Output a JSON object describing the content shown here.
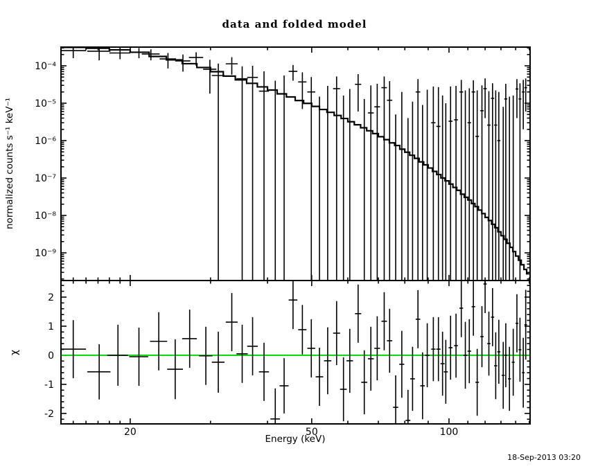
{
  "title": "data and folded model",
  "footer": {
    "timestamp": "18-Sep-2013 03:20"
  },
  "colors": {
    "frame": "#000000",
    "data": "#000000",
    "model": "#000000",
    "zero_line": "#00d400",
    "background": "#ffffff"
  },
  "chart_data": [
    {
      "panel": "spectrum",
      "type": "line",
      "title": "data and folded model",
      "ylabel": "normalized counts s⁻¹ keV⁻¹",
      "xscale": "log",
      "yscale": "log",
      "xlim": [
        14.1,
        150.6
      ],
      "ylim": [
        1.82e-10,
        0.000316
      ],
      "x_ticks_major": [
        20,
        50,
        100
      ],
      "x_tick_labels": [
        "20",
        "50",
        "100"
      ],
      "x_ticks_minor": [
        15,
        16,
        17,
        18,
        19,
        30,
        40,
        60,
        70,
        80,
        90,
        110,
        120,
        130,
        140,
        150
      ],
      "y_ticks_major": [
        0.0001,
        1e-05,
        1e-06,
        1e-07,
        1e-08,
        1e-09
      ],
      "y_tick_labels": [
        "10⁻⁴",
        "10⁻⁵",
        "10⁻⁶",
        "10⁻⁷",
        "10⁻⁸",
        "10⁻⁹"
      ],
      "legend": null,
      "grid": false,
      "bin_half_width_kev": 1,
      "model_steps": [
        [
          15,
          0.00031
        ],
        [
          17,
          0.000295
        ],
        [
          19,
          0.000267
        ],
        [
          21,
          0.00023
        ],
        [
          23,
          0.000178
        ],
        [
          25,
          0.000144
        ],
        [
          27,
          0.000114
        ],
        [
          29,
          9e-05
        ],
        [
          31,
          6.95e-05
        ],
        [
          33,
          5.3e-05
        ],
        [
          35,
          4.2e-05
        ],
        [
          37,
          3.4e-05
        ],
        [
          39,
          2.73e-05
        ],
        [
          41,
          2.25e-05
        ],
        [
          43,
          1.78e-05
        ],
        [
          45,
          1.47e-05
        ],
        [
          47,
          1.18e-05
        ],
        [
          49,
          9.9e-06
        ],
        [
          51,
          8.2e-06
        ],
        [
          53,
          6.8e-06
        ],
        [
          55,
          5.7e-06
        ],
        [
          57,
          4.7e-06
        ],
        [
          59,
          3.9e-06
        ],
        [
          61,
          3.2e-06
        ],
        [
          63,
          2.65e-06
        ],
        [
          65,
          2.2e-06
        ],
        [
          67,
          1.83e-06
        ],
        [
          69,
          1.54e-06
        ],
        [
          71,
          1.27e-06
        ],
        [
          73,
          1.06e-06
        ],
        [
          75,
          8.7e-07
        ],
        [
          77,
          7.4e-07
        ],
        [
          79,
          5.9e-07
        ],
        [
          81,
          4.9e-07
        ],
        [
          83,
          4.05e-07
        ],
        [
          85,
          3.35e-07
        ],
        [
          87,
          2.7e-07
        ],
        [
          89,
          2.25e-07
        ],
        [
          91,
          1.85e-07
        ],
        [
          93,
          1.5e-07
        ],
        [
          95,
          1.24e-07
        ],
        [
          97,
          1e-07
        ],
        [
          99,
          8.4e-08
        ],
        [
          101,
          6.9e-08
        ],
        [
          103,
          5.6e-08
        ],
        [
          105,
          4.7e-08
        ],
        [
          107,
          3.7e-08
        ],
        [
          109,
          3.05e-08
        ],
        [
          111,
          2.58e-08
        ],
        [
          113,
          2.08e-08
        ],
        [
          115,
          1.72e-08
        ],
        [
          117,
          1.39e-08
        ],
        [
          119,
          1.12e-08
        ],
        [
          121,
          8.85e-09
        ],
        [
          123,
          7.3e-09
        ],
        [
          125,
          5.8e-09
        ],
        [
          127,
          4.7e-09
        ],
        [
          129,
          3.65e-09
        ],
        [
          131,
          2.87e-09
        ],
        [
          133,
          2.3e-09
        ],
        [
          135,
          1.8e-09
        ],
        [
          137,
          1.4e-09
        ],
        [
          139,
          1.08e-09
        ],
        [
          141,
          8.2e-10
        ],
        [
          143,
          6.35e-10
        ],
        [
          145,
          4.8e-10
        ],
        [
          147,
          3.6e-10
        ],
        [
          149,
          2.75e-10
        ]
      ],
      "data_points": [
        [
          15.0,
          0.000255,
          0.00034,
          0.00016
        ],
        [
          17.1,
          0.000245,
          0.00033,
          0.00014
        ],
        [
          19.0,
          0.00022,
          0.00029,
          0.00015
        ],
        [
          20.9,
          0.00023,
          0.0003,
          0.00016
        ],
        [
          22.2,
          0.000207,
          0.000275,
          0.00014
        ],
        [
          24.2,
          0.000153,
          0.00022,
          8.5e-05
        ],
        [
          26.1,
          0.000135,
          0.0002,
          7e-05
        ],
        [
          27.9,
          0.000167,
          0.00023,
          0.0001
        ],
        [
          29.9,
          8.1e-05,
          0.000145,
          1.8e-05
        ],
        [
          31.2,
          5.5e-05,
          0.000115,
          0
        ],
        [
          33.4,
          0.000113,
          0.00017,
          5.8e-05
        ],
        [
          35.2,
          4.5e-05,
          9.7e-05,
          0
        ],
        [
          37.1,
          4.9e-05,
          0.0001,
          0
        ],
        [
          39.3,
          2.1e-05,
          7.1e-05,
          0
        ],
        [
          41.6,
          null,
          4e-05,
          0
        ],
        [
          43.5,
          null,
          5.5e-05,
          0
        ],
        [
          45.5,
          7.1e-05,
          0.000105,
          4e-05
        ],
        [
          47.7,
          3.7e-05,
          6.7e-05,
          7e-06
        ],
        [
          49.9,
          2e-05,
          5e-05,
          0
        ],
        [
          52.0,
          null,
          1.5e-05,
          0
        ],
        [
          54.2,
          null,
          2.9e-05,
          0
        ],
        [
          56.7,
          2.45e-05,
          5.2e-05,
          0
        ],
        [
          58.7,
          null,
          1.6e-05,
          0
        ],
        [
          60.6,
          null,
          2.4e-05,
          0
        ],
        [
          63.2,
          3.2e-05,
          6e-05,
          6e-06
        ],
        [
          65.2,
          null,
          1.3e-05,
          0
        ],
        [
          67.4,
          5.5e-06,
          3e-05,
          0
        ],
        [
          69.6,
          8e-06,
          3.3e-05,
          0
        ],
        [
          72.1,
          2.6e-05,
          5.2e-05,
          0
        ],
        [
          74.1,
          1.2e-05,
          3.9e-05,
          0
        ],
        [
          76.4,
          null,
          5e-06,
          0
        ],
        [
          78.8,
          null,
          2e-05,
          0
        ],
        [
          81.3,
          null,
          4e-06,
          0
        ],
        [
          83.2,
          null,
          1.1e-05,
          0
        ],
        [
          85.5,
          2e-05,
          4.4e-05,
          0
        ],
        [
          87.5,
          null,
          9e-06,
          0
        ],
        [
          89.6,
          null,
          2.3e-05,
          0
        ],
        [
          92.4,
          3e-06,
          2.8e-05,
          0
        ],
        [
          94.8,
          2.4e-06,
          2.7e-05,
          0
        ],
        [
          96.8,
          null,
          1.6e-05,
          0
        ],
        [
          98.4,
          null,
          1e-05,
          0
        ],
        [
          100.8,
          3.3e-06,
          2.8e-05,
          0
        ],
        [
          103.6,
          3.6e-06,
          2.9e-05,
          0
        ],
        [
          106.4,
          2e-05,
          4.2e-05,
          0
        ],
        [
          108.6,
          null,
          2.2e-05,
          0
        ],
        [
          110.8,
          3e-06,
          2.5e-05,
          0
        ],
        [
          113.1,
          2e-05,
          4.1e-05,
          0
        ],
        [
          115.3,
          1.3e-06,
          2.2e-05,
          0
        ],
        [
          118.1,
          6.3e-06,
          3e-05,
          0
        ],
        [
          120.0,
          2.45e-05,
          4.6e-05,
          4e-06
        ],
        [
          122.3,
          2.6e-06,
          2.1e-05,
          0
        ],
        [
          124.6,
          1.35e-05,
          3.4e-05,
          0
        ],
        [
          126.6,
          2.6e-06,
          2.2e-05,
          0
        ],
        [
          128.6,
          1e-06,
          2e-05,
          0
        ],
        [
          131.5,
          null,
          8e-06,
          0
        ],
        [
          133.2,
          1.3e-05,
          3.3e-05,
          0
        ],
        [
          135.7,
          null,
          1.5e-05,
          0
        ],
        [
          138.3,
          null,
          1.6e-05,
          0
        ],
        [
          140.9,
          2.4e-05,
          4.4e-05,
          4e-06
        ],
        [
          143.1,
          1.3e-05,
          3.4e-05,
          0
        ],
        [
          145.5,
          2e-05,
          4.2e-05,
          2e-06
        ],
        [
          147.3,
          2.6e-05,
          4.6e-05,
          6e-06
        ]
      ]
    },
    {
      "panel": "residuals",
      "type": "scatter",
      "ylabel": "χ",
      "xlabel": "Energy (keV)",
      "xscale": "log",
      "yscale": "linear",
      "xlim": [
        14.1,
        150.6
      ],
      "ylim": [
        -2.36,
        2.57
      ],
      "x_ticks_major": [
        20,
        50,
        100
      ],
      "x_tick_labels": [
        "20",
        "50",
        "100"
      ],
      "x_ticks_minor": [
        15,
        16,
        17,
        18,
        19,
        30,
        40,
        60,
        70,
        80,
        90,
        110,
        120,
        130,
        140,
        150
      ],
      "y_ticks_major": [
        -2,
        -1,
        0,
        1,
        2
      ],
      "y_tick_labels": [
        "-2",
        "-1",
        "0",
        "1",
        "2"
      ],
      "y_minor_step": 0.2,
      "zero_line": 0,
      "zero_line_color": "#00d400",
      "bin_half_width_kev": 1,
      "points": [
        [
          15.0,
          0.21,
          1.0
        ],
        [
          17.1,
          -0.57,
          0.95
        ],
        [
          18.8,
          0.0,
          1.05
        ],
        [
          20.9,
          -0.05,
          1.0
        ],
        [
          23.1,
          0.48,
          1.0
        ],
        [
          25.1,
          -0.48,
          1.03
        ],
        [
          27.0,
          0.57,
          1.0
        ],
        [
          29.3,
          -0.02,
          1.0
        ],
        [
          31.2,
          -0.24,
          1.05
        ],
        [
          33.4,
          1.14,
          1.0
        ],
        [
          35.2,
          0.05,
          1.0
        ],
        [
          37.1,
          0.31,
          1.0
        ],
        [
          39.3,
          -0.57,
          1.0
        ],
        [
          41.6,
          -2.19,
          1.05
        ],
        [
          43.5,
          -1.05,
          0.95
        ],
        [
          45.5,
          1.9,
          1.0
        ],
        [
          47.7,
          0.88,
          0.85
        ],
        [
          49.9,
          0.24,
          1.0
        ],
        [
          52.0,
          -0.74,
          1.0
        ],
        [
          54.2,
          -0.19,
          1.15
        ],
        [
          56.7,
          0.76,
          1.1
        ],
        [
          58.7,
          -1.17,
          1.1
        ],
        [
          60.6,
          -0.19,
          1.1
        ],
        [
          63.2,
          1.43,
          1.0
        ],
        [
          65.2,
          -0.93,
          1.1
        ],
        [
          67.4,
          -0.12,
          1.1
        ],
        [
          69.6,
          0.24,
          1.1
        ],
        [
          72.1,
          1.17,
          1.0
        ],
        [
          74.1,
          0.5,
          1.1
        ],
        [
          76.4,
          -1.79,
          1.1
        ],
        [
          78.8,
          -0.31,
          1.15
        ],
        [
          81.3,
          -2.24,
          1.05
        ],
        [
          83.2,
          -0.81,
          1.1
        ],
        [
          85.5,
          1.24,
          1.0
        ],
        [
          87.5,
          -1.05,
          1.15
        ],
        [
          89.6,
          0.0,
          1.1
        ],
        [
          92.4,
          0.21,
          1.1
        ],
        [
          94.8,
          0.21,
          1.1
        ],
        [
          96.8,
          -0.29,
          1.1
        ],
        [
          98.4,
          -0.57,
          1.1
        ],
        [
          100.8,
          0.26,
          1.1
        ],
        [
          103.6,
          0.33,
          1.1
        ],
        [
          106.4,
          1.62,
          1.0
        ],
        [
          108.6,
          0.0,
          1.15
        ],
        [
          110.8,
          0.14,
          1.1
        ],
        [
          113.1,
          1.67,
          1.0
        ],
        [
          115.3,
          -0.93,
          1.15
        ],
        [
          118.1,
          0.64,
          1.05
        ],
        [
          120.0,
          2.45,
          1.0
        ],
        [
          122.3,
          0.4,
          1.1
        ],
        [
          124.6,
          1.31,
          1.0
        ],
        [
          126.6,
          -0.36,
          1.15
        ],
        [
          128.6,
          0.12,
          1.1
        ],
        [
          131.5,
          -0.69,
          1.15
        ],
        [
          133.2,
          0.0,
          1.1
        ],
        [
          135.7,
          -0.81,
          1.1
        ],
        [
          138.3,
          -0.24,
          1.15
        ],
        [
          140.9,
          1.1,
          1.0
        ],
        [
          143.1,
          0.19,
          1.1
        ],
        [
          145.5,
          -0.6,
          1.2
        ],
        [
          147.3,
          1.05,
          1.2
        ]
      ]
    }
  ]
}
